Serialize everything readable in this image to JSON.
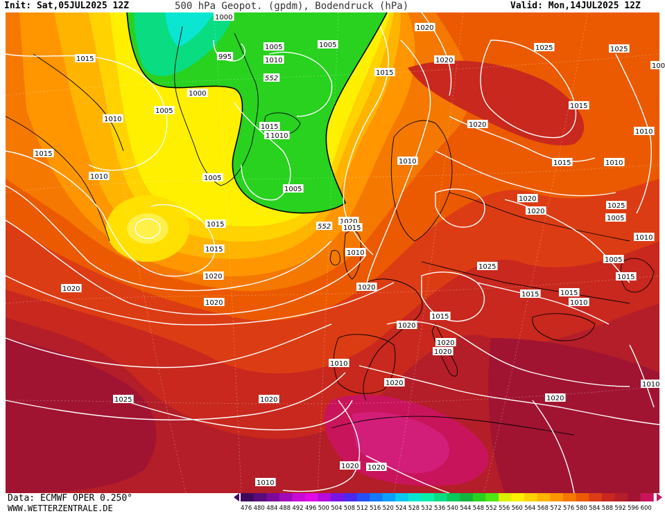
{
  "header": {
    "init": "Init: Sat,05JUL2025 12Z",
    "title": "500 hPa Geopot. (gpdm), Bodendruck (hPa)",
    "valid": "Valid: Mon,14JUL2025 12Z"
  },
  "footer": {
    "source": "Data: ECMWF OPER 0.250°",
    "site": "WWW.WETTERZENTRALE.DE"
  },
  "colors": {
    "land_lines": "#000000",
    "isobars": "#ffffff"
  },
  "legend": {
    "values": [
      "476",
      "480",
      "484",
      "488",
      "492",
      "496",
      "500",
      "504",
      "508",
      "512",
      "516",
      "520",
      "524",
      "528",
      "532",
      "536",
      "540",
      "544",
      "548",
      "552",
      "556",
      "560",
      "564",
      "568",
      "572",
      "576",
      "580",
      "584",
      "588",
      "592",
      "596",
      "600"
    ],
    "colors": [
      "#3d0a5c",
      "#5a0a7a",
      "#7a0a99",
      "#a00ab8",
      "#c80ad6",
      "#e00ae8",
      "#b40adc",
      "#7a14e6",
      "#4a28ee",
      "#2450f5",
      "#1478fa",
      "#0aa0fa",
      "#0ac8f0",
      "#0ae6d2",
      "#0af0aa",
      "#0adc82",
      "#0ac85a",
      "#14b43c",
      "#28d21e",
      "#50e614",
      "#dcf000",
      "#fff000",
      "#ffd200",
      "#ffb400",
      "#ff9600",
      "#f57800",
      "#eb5a00",
      "#dc3c14",
      "#c8281e",
      "#b41e28",
      "#a01432",
      "#c8145a"
    ]
  },
  "map": {
    "isobar_labels": [
      "1000",
      "995",
      "1005",
      "1005",
      "1010",
      "552",
      "1000",
      "1005",
      "1015",
      "1010",
      "1015",
      "1020",
      "1020",
      "1025",
      "1025",
      "1015",
      "1010",
      "1015",
      "1010",
      "1005",
      "1020",
      "1015",
      "1010",
      "1010",
      "1015",
      "1005",
      "1020",
      "1015",
      "1010",
      "1010",
      "552",
      "1005",
      "1015",
      "1010",
      "1015",
      "1020",
      "1020",
      "1020",
      "1025",
      "1020",
      "1020",
      "1020",
      "1015",
      "1015",
      "1010",
      "1010",
      "1020",
      "1020",
      "1010",
      "1005",
      "1010",
      "1020",
      "1020",
      "1020",
      "1010",
      "1025",
      "1025",
      "1015",
      "1020",
      "1015",
      "1020",
      "1020",
      "100"
    ],
    "contour_552_label": "552"
  }
}
